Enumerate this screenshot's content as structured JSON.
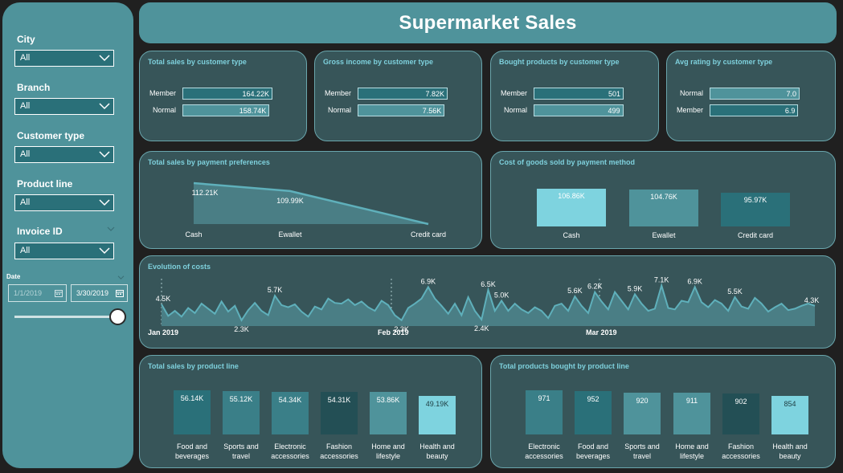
{
  "header": {
    "title": "Supermarket Sales"
  },
  "filters": [
    {
      "label": "City",
      "value": "All"
    },
    {
      "label": "Branch",
      "value": "All"
    },
    {
      "label": "Customer type",
      "value": "All"
    },
    {
      "label": "Product line",
      "value": "All"
    },
    {
      "label": "Invoice ID",
      "value": "All"
    }
  ],
  "date_filter": {
    "label": "Date",
    "start": "1/1/2019",
    "end": "3/30/2019"
  },
  "colors": {
    "light": "#7ed3df",
    "mid": "#4f939b",
    "dark": "#2a7079",
    "darkest": "#234f55",
    "teal": "#3a7f88"
  },
  "chart_data": [
    {
      "type": "bar",
      "orientation": "horizontal",
      "title": "Total sales by customer type",
      "categories": [
        "Member",
        "Normal"
      ],
      "values": [
        164.22,
        158.74
      ],
      "value_labels": [
        "164.22K",
        "158.74K"
      ],
      "xlim": [
        0,
        164.22
      ]
    },
    {
      "type": "bar",
      "orientation": "horizontal",
      "title": "Gross income by customer type",
      "categories": [
        "Member",
        "Normal"
      ],
      "values": [
        7.82,
        7.56
      ],
      "value_labels": [
        "7.82K",
        "7.56K"
      ],
      "xlim": [
        0,
        7.82
      ]
    },
    {
      "type": "bar",
      "orientation": "horizontal",
      "title": "Bought products by customer type",
      "categories": [
        "Member",
        "Normal"
      ],
      "values": [
        501,
        499
      ],
      "value_labels": [
        "501",
        "499"
      ],
      "xlim": [
        0,
        501
      ]
    },
    {
      "type": "bar",
      "orientation": "horizontal",
      "title": "Avg rating by customer type",
      "categories": [
        "Normal",
        "Member"
      ],
      "values": [
        7.0,
        6.9
      ],
      "value_labels": [
        "7.0",
        "6.9"
      ],
      "xlim": [
        0,
        7.0
      ]
    },
    {
      "type": "area",
      "title": "Total sales by payment preferences",
      "categories": [
        "Cash",
        "Ewallet",
        "Credit card"
      ],
      "values": [
        112.21,
        109.99,
        100.77
      ],
      "value_labels": [
        "112.21K",
        "109.99K",
        ""
      ],
      "ylim": [
        100.77,
        112.21
      ]
    },
    {
      "type": "bar",
      "title": "Cost of goods sold by payment method",
      "categories": [
        "Cash",
        "Ewallet",
        "Credit card"
      ],
      "values": [
        106.86,
        104.76,
        95.97
      ],
      "value_labels": [
        "106.86K",
        "104.76K",
        "95.97K"
      ],
      "ylim": [
        0,
        106.86
      ]
    },
    {
      "type": "area",
      "title": "Evolution of costs",
      "x_ticks": [
        "Jan 2019",
        "Feb 2019",
        "Mar 2019"
      ],
      "values": [
        4.5,
        2.9,
        3.6,
        2.8,
        4.0,
        3.3,
        4.6,
        3.9,
        3.2,
        4.9,
        3.5,
        4.3,
        2.3,
        3.7,
        4.7,
        3.6,
        3.0,
        5.7,
        4.4,
        4.1,
        4.5,
        3.5,
        2.8,
        4.2,
        3.8,
        5.3,
        4.7,
        4.6,
        5.2,
        4.4,
        4.9,
        4.1,
        3.6,
        5.0,
        4.4,
        3.0,
        2.3,
        4.0,
        4.6,
        5.3,
        6.9,
        5.3,
        4.3,
        3.2,
        4.6,
        3.0,
        5.5,
        3.6,
        2.4,
        6.5,
        3.6,
        5.0,
        3.6,
        4.6,
        3.8,
        3.3,
        4.1,
        3.6,
        2.6,
        4.3,
        4.6,
        3.6,
        5.6,
        4.3,
        3.3,
        6.2,
        4.9,
        3.8,
        6.2,
        5.0,
        3.8,
        5.9,
        4.6,
        3.6,
        3.9,
        7.1,
        4.0,
        3.8,
        5.0,
        4.8,
        6.9,
        4.8,
        4.1,
        5.1,
        4.6,
        3.6,
        5.5,
        4.2,
        3.9,
        5.4,
        4.6,
        3.5,
        4.1,
        4.6,
        3.7,
        3.9,
        4.3,
        4.6,
        4.3
      ],
      "annotations": [
        {
          "index": 0,
          "label": "4.5K"
        },
        {
          "index": 12,
          "label": "2.3K"
        },
        {
          "index": 17,
          "label": "5.7K"
        },
        {
          "index": 36,
          "label": "2.3K"
        },
        {
          "index": 40,
          "label": "6.9K"
        },
        {
          "index": 48,
          "label": "2.4K"
        },
        {
          "index": 49,
          "label": "6.5K"
        },
        {
          "index": 51,
          "label": "5.0K"
        },
        {
          "index": 62,
          "label": "5.6K"
        },
        {
          "index": 65,
          "label": "6.2K"
        },
        {
          "index": 71,
          "label": "5.9K"
        },
        {
          "index": 75,
          "label": "7.1K"
        },
        {
          "index": 80,
          "label": "6.9K"
        },
        {
          "index": 86,
          "label": "5.5K"
        },
        {
          "index": 98,
          "label": "4.3K"
        }
      ]
    },
    {
      "type": "bar",
      "title": "Total sales by product line",
      "categories": [
        "Food and beverages",
        "Sports and travel",
        "Electronic accessories",
        "Fashion accessories",
        "Home and lifestyle",
        "Health and beauty"
      ],
      "category_lines": [
        [
          "Food and",
          "beverages"
        ],
        [
          "Sports and",
          "travel"
        ],
        [
          "Electronic",
          "accessories"
        ],
        [
          "Fashion",
          "accessories"
        ],
        [
          "Home and",
          "lifestyle"
        ],
        [
          "Health and",
          "beauty"
        ]
      ],
      "values": [
        56.14,
        55.12,
        54.34,
        54.31,
        53.86,
        49.19
      ],
      "value_labels": [
        "56.14K",
        "55.12K",
        "54.34K",
        "54.31K",
        "53.86K",
        "49.19K"
      ],
      "ylim": [
        0,
        56.14
      ]
    },
    {
      "type": "bar",
      "title": "Total products bought by product line",
      "categories": [
        "Electronic accessories",
        "Food and beverages",
        "Sports and travel",
        "Home and lifestyle",
        "Fashion accessories",
        "Health and beauty"
      ],
      "category_lines": [
        [
          "Electronic",
          "accessories"
        ],
        [
          "Food and",
          "beverages"
        ],
        [
          "Sports and",
          "travel"
        ],
        [
          "Home and",
          "lifestyle"
        ],
        [
          "Fashion",
          "accessories"
        ],
        [
          "Health and",
          "beauty"
        ]
      ],
      "values": [
        971,
        952,
        920,
        911,
        902,
        854
      ],
      "value_labels": [
        "971",
        "952",
        "920",
        "911",
        "902",
        "854"
      ],
      "ylim": [
        0,
        971
      ]
    }
  ]
}
